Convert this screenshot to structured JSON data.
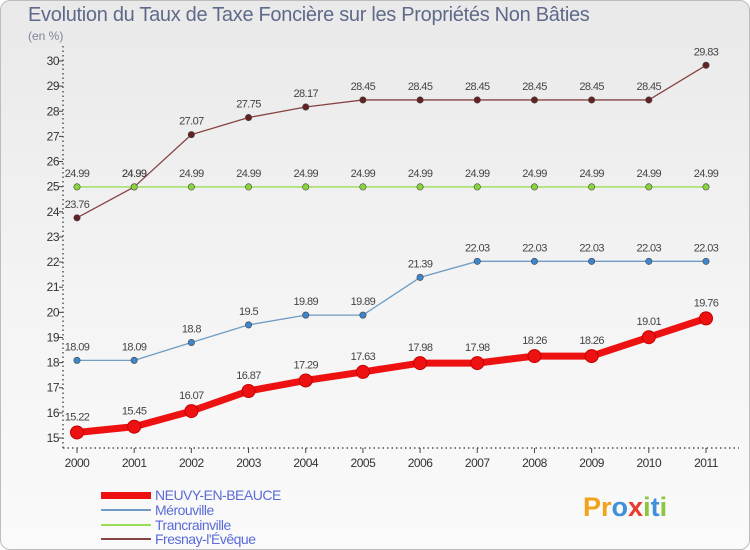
{
  "header": {
    "title": "Evolution du Taux de Taxe Foncière sur les Propriétés Non Bâties",
    "unit": "(en %)"
  },
  "logo": {
    "text": "Proxiti",
    "letters": [
      {
        "ch": "P",
        "color": "#f2a31d"
      },
      {
        "ch": "r",
        "color": "#f2a31d"
      },
      {
        "ch": "o",
        "color": "#3f8fdb"
      },
      {
        "ch": "x",
        "color": "#e93a2e"
      },
      {
        "ch": "i",
        "color": "#8cc63f"
      },
      {
        "ch": "t",
        "color": "#3f8fdb"
      },
      {
        "ch": "i",
        "color": "#8cc63f"
      }
    ]
  },
  "chart_data": {
    "type": "line",
    "title": "Evolution du Taux de Taxe Foncière sur les Propriétés Non Bâties",
    "ylabel": "(en %)",
    "xlabel": "",
    "x": [
      "2000",
      "2001",
      "2002",
      "2003",
      "2004",
      "2005",
      "2006",
      "2007",
      "2008",
      "2009",
      "2010",
      "2011"
    ],
    "ylim": [
      15,
      30
    ],
    "yticks": [
      "15",
      "16",
      "17",
      "18",
      "19",
      "20",
      "21",
      "22",
      "23",
      "24",
      "25",
      "26",
      "27",
      "28",
      "29",
      "30"
    ],
    "grid": false,
    "legend_position": "bottom-left",
    "series": [
      {
        "name": "NEUVY-EN-BEAUCE",
        "color": "#ee1111",
        "bold": true,
        "values": [
          15.22,
          15.45,
          16.07,
          16.87,
          17.29,
          17.63,
          17.98,
          17.98,
          18.26,
          18.26,
          19.01,
          19.76
        ],
        "labels": [
          "15.22",
          "15.45",
          "16.07",
          "16.87",
          "17.29",
          "17.63",
          "17.98",
          "17.98",
          "18.26",
          "18.26",
          "19.01",
          "19.76"
        ]
      },
      {
        "name": "Mérouville",
        "color": "#6e9cc4",
        "marker": "#3e86cc",
        "values": [
          18.09,
          18.09,
          18.8,
          19.5,
          19.89,
          19.89,
          21.39,
          22.03,
          22.03,
          22.03,
          22.03,
          22.03
        ],
        "labels": [
          "18.09",
          "18.09",
          "18.8",
          "19.5",
          "19.89",
          "19.89",
          "21.39",
          "22.03",
          "22.03",
          "22.03",
          "22.03",
          "22.03"
        ]
      },
      {
        "name": "Trancrainville",
        "color": "#99dd55",
        "marker": "#88d43c",
        "values": [
          24.99,
          24.99,
          24.99,
          24.99,
          24.99,
          24.99,
          24.99,
          24.99,
          24.99,
          24.99,
          24.99,
          24.99
        ],
        "labels": [
          "24.99",
          "24.99",
          "24.99",
          "24.99",
          "24.99",
          "24.99",
          "24.99",
          "24.99",
          "24.99",
          "24.99",
          "24.99",
          "24.99"
        ]
      },
      {
        "name": "Fresnay-l'Évêque",
        "color": "#884444",
        "marker": "#662222",
        "values": [
          23.76,
          24.99,
          27.07,
          27.75,
          28.17,
          28.45,
          28.45,
          28.45,
          28.45,
          28.45,
          28.45,
          29.83
        ],
        "labels": [
          "23.76",
          "24.99",
          "27.07",
          "27.75",
          "28.17",
          "28.45",
          "28.45",
          "28.45",
          "28.45",
          "28.45",
          "28.45",
          "29.83"
        ]
      }
    ]
  }
}
